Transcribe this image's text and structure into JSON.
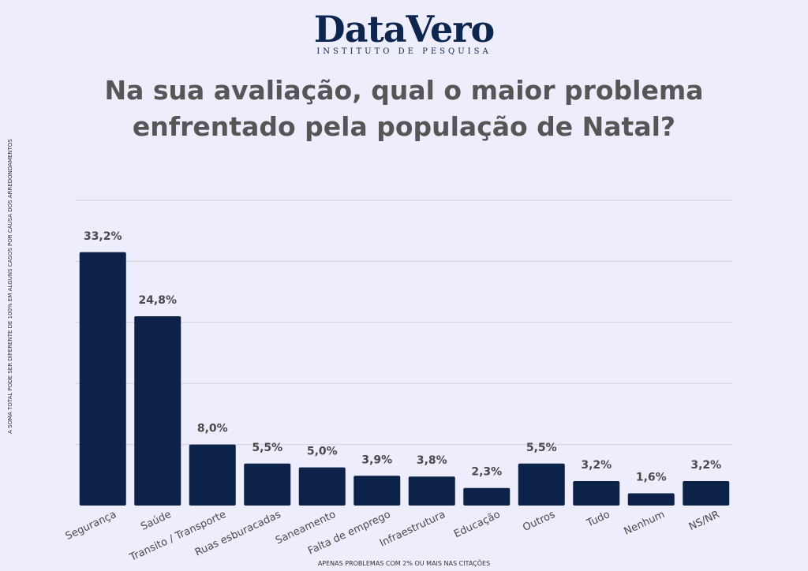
{
  "logo": {
    "name": "DataVero",
    "subtitle": "INSTITUTO DE PESQUISA"
  },
  "title_line1": "Na sua avaliação, qual o maior problema",
  "title_line2": "enfrentado pela população de Natal?",
  "side_note": "A SOMA TOTAL PODE SER DIFERENTE DE 100% EM ALGUNS CASOS POR CAUSA DOS ARREDONDAMENTOS",
  "footnote": "APENAS PROBLEMAS COM 2% OU MAIS NAS CITAÇÕES",
  "colors": {
    "bar": "#0d2248",
    "label": "#4a4a4a",
    "grid": "#cfcfe0",
    "background": "#ededfb"
  },
  "chart_data": {
    "type": "bar",
    "title": "Na sua avaliação, qual o maior problema enfrentado pela população de Natal?",
    "xlabel": "",
    "ylabel": "",
    "ylim": [
      0,
      40
    ],
    "grid": true,
    "categories": [
      "Segurança",
      "Saúde",
      "Transito / Transporte",
      "Ruas esburacadas",
      "Saneamento",
      "Falta de emprego",
      "Infraestrutura",
      "Educação",
      "Outros",
      "Tudo",
      "Nenhum",
      "NS/NR"
    ],
    "values": [
      33.2,
      24.8,
      8.0,
      5.5,
      5.0,
      3.9,
      3.8,
      2.3,
      5.5,
      3.2,
      1.6,
      3.2
    ],
    "value_labels": [
      "33,2%",
      "24,8%",
      "8,0%",
      "5,5%",
      "5,0%",
      "3,9%",
      "3,8%",
      "2,3%",
      "5,5%",
      "3,2%",
      "1,6%",
      "3,2%"
    ]
  }
}
